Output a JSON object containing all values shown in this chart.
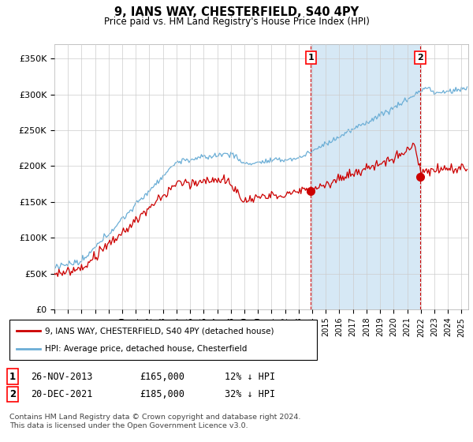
{
  "title": "9, IANS WAY, CHESTERFIELD, S40 4PY",
  "subtitle": "Price paid vs. HM Land Registry's House Price Index (HPI)",
  "ylabel_ticks": [
    "£0",
    "£50K",
    "£100K",
    "£150K",
    "£200K",
    "£250K",
    "£300K",
    "£350K"
  ],
  "ytick_values": [
    0,
    50000,
    100000,
    150000,
    200000,
    250000,
    300000,
    350000
  ],
  "ylim": [
    0,
    370000
  ],
  "xlim_start": 1995.0,
  "xlim_end": 2025.5,
  "hpi_color": "#6baed6",
  "hpi_fill_color": "#d6e8f5",
  "price_color": "#cc0000",
  "sale1_date": 2013.9,
  "sale1_price": 165000,
  "sale2_date": 2021.96,
  "sale2_price": 185000,
  "legend_label1": "9, IANS WAY, CHESTERFIELD, S40 4PY (detached house)",
  "legend_label2": "HPI: Average price, detached house, Chesterfield",
  "table_row1": [
    "1",
    "26-NOV-2013",
    "£165,000",
    "12% ↓ HPI"
  ],
  "table_row2": [
    "2",
    "20-DEC-2021",
    "£185,000",
    "32% ↓ HPI"
  ],
  "footer": "Contains HM Land Registry data © Crown copyright and database right 2024.\nThis data is licensed under the Open Government Licence v3.0.",
  "background_color": "#ffffff",
  "grid_color": "#cccccc"
}
